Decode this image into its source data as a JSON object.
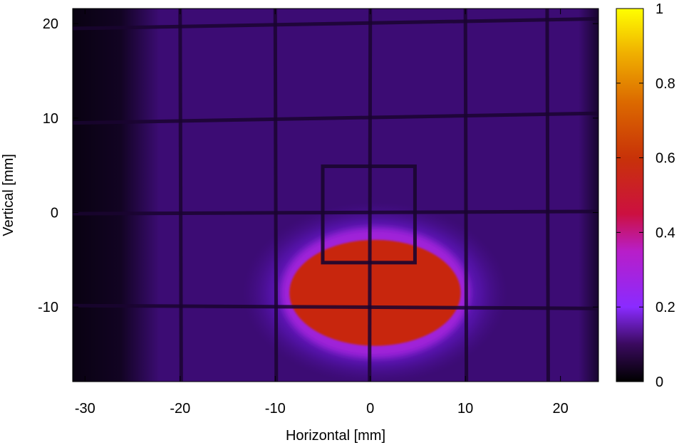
{
  "chart_data": {
    "type": "heatmap",
    "title": "",
    "xlabel": "Horizontal [mm]",
    "ylabel": "Vertical [mm]",
    "xlim": [
      -31.3,
      24
    ],
    "ylim": [
      -17.9,
      21.6
    ],
    "x_ticks": [
      -30,
      -20,
      -10,
      0,
      10,
      20
    ],
    "x_tick_labels": [
      "-30",
      "-20",
      "-10",
      "0",
      "10",
      "20"
    ],
    "y_ticks": [
      -10,
      0,
      10,
      20
    ],
    "y_tick_labels": [
      "-10",
      "0",
      "10",
      "20"
    ],
    "colorbar": {
      "range": [
        0,
        1
      ],
      "ticks": [
        0,
        0.2,
        0.4,
        0.6,
        0.8,
        1
      ],
      "tick_labels": [
        "0",
        "0.2",
        "0.4",
        "0.6",
        "0.8",
        "1"
      ],
      "colormap": [
        "#000000",
        "#5a0f8c",
        "#a02bff",
        "#c01890",
        "#c8280a",
        "#e07000",
        "#f5c000",
        "#ffff00"
      ]
    },
    "features": {
      "background_intensity": 0.1,
      "dark_left_region_x": [
        -31.3,
        -24
      ],
      "beam_spot": {
        "center": [
          0.5,
          -8.5
        ],
        "half_width": [
          9,
          5.5
        ],
        "peak_intensity": 0.55
      },
      "grid_lines_x": [
        -20,
        -10,
        0,
        10,
        18.6
      ],
      "grid_lines_y": [
        20,
        10,
        0,
        -10
      ],
      "inner_square": {
        "x": [
          -5,
          4.7
        ],
        "y": [
          -5.3,
          4.9
        ]
      }
    },
    "grid": false,
    "legend": "none"
  }
}
